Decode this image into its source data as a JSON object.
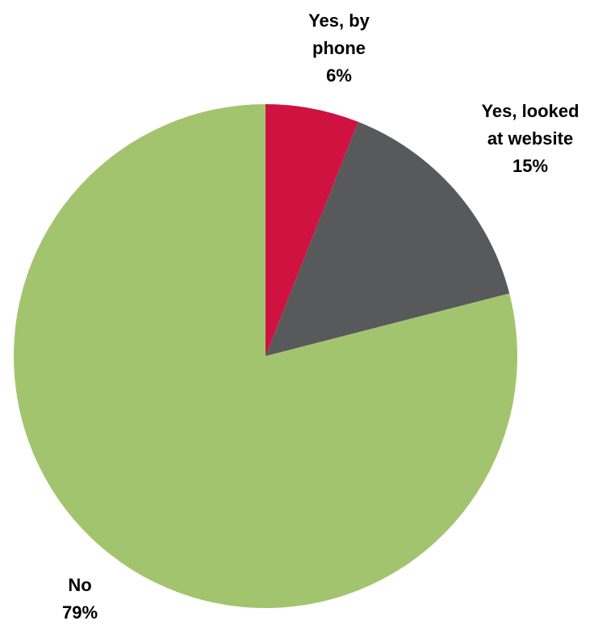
{
  "chart_data": {
    "type": "pie",
    "start": "top",
    "direction": "clockwise",
    "slices": [
      {
        "label_lines": [
          "Yes, by",
          "phone"
        ],
        "value_label": "6%",
        "value": 6,
        "color": "#d01241"
      },
      {
        "label_lines": [
          "Yes, looked",
          "at website"
        ],
        "value_label": "15%",
        "value": 15,
        "color": "#58595b"
      },
      {
        "label_lines": [
          "No"
        ],
        "value_label": "79%",
        "value": 79,
        "color": "#a3c46e"
      }
    ]
  }
}
